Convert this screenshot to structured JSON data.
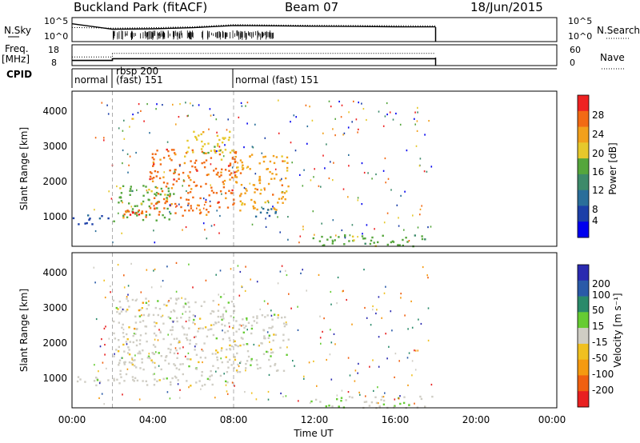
{
  "header": {
    "station": "Buckland Park (fitACF)",
    "beam": "Beam 07",
    "date": "18/Jun/2015"
  },
  "noise_panel": {
    "left_label": "N.Sky",
    "right_label": "N.Search",
    "left_ticks": [
      "10^5",
      "10^0"
    ],
    "right_ticks": [
      "10^5",
      "10^0"
    ]
  },
  "freq_panel": {
    "left_label_1": "Freq.",
    "left_label_2": "[MHz]",
    "right_label": "Nave",
    "left_ticks": [
      "18",
      "8"
    ],
    "right_ticks": [
      "60",
      "0"
    ]
  },
  "cpid_panel": {
    "label": "CPID",
    "segments": [
      {
        "text": "normal",
        "start_hour": 0,
        "end_hour": 2.0
      },
      {
        "text": "rbsp 200",
        "start_hour": 2.0,
        "end_hour": 8.0
      },
      {
        "text": "(fast) 151",
        "start_hour": 2.0,
        "end_hour": 8.0
      },
      {
        "text": "normal (fast) 151",
        "start_hour": 8.0,
        "end_hour": 18.0
      }
    ]
  },
  "power_panel": {
    "ylabel": "Slant Range [km]",
    "yticks": [
      "1000",
      "2000",
      "3000",
      "4000"
    ],
    "colorbar_label": "Power [dB]",
    "colorbar_ticks": [
      "4",
      "8",
      "12",
      "16",
      "20",
      "24",
      "28"
    ],
    "colors": [
      "#0000ee",
      "#1c3fa8",
      "#2a6e9a",
      "#3d8a6a",
      "#55a63c",
      "#e6c82c",
      "#f2a01c",
      "#f26a14",
      "#ee2222"
    ]
  },
  "velocity_panel": {
    "ylabel": "Slant Range [km]",
    "yticks": [
      "1000",
      "2000",
      "3000",
      "4000"
    ],
    "colorbar_label": "Velocity [m s⁻¹]",
    "colorbar_ticks": [
      "200",
      "100",
      "50",
      "15",
      "-15",
      "-50",
      "-100",
      "-200"
    ],
    "colors": [
      "#2a2ab0",
      "#2a5aa8",
      "#2a8a6a",
      "#66cc33",
      "#cfcdc4",
      "#f0c020",
      "#f59a10",
      "#f06010",
      "#e82020"
    ]
  },
  "x_axis": {
    "label": "Time UT",
    "ticks": [
      "00:00",
      "04:00",
      "08:00",
      "12:00",
      "16:00",
      "20:00",
      "00:00"
    ]
  },
  "chart_data": [
    {
      "type": "line",
      "title": "Buckland Park (fitACF) Beam 07 18/Jun/2015",
      "series": [
        {
          "name": "N.Sky",
          "x": [
            0,
            2,
            4,
            6,
            8,
            10,
            12,
            14,
            16,
            18
          ],
          "values": [
            8000,
            400,
            500,
            900,
            3000,
            2500,
            2000,
            1800,
            1500,
            1400
          ]
        },
        {
          "name": "N.Search",
          "x": [
            0,
            2,
            4,
            6,
            8,
            10,
            12,
            14,
            16,
            18
          ],
          "values": [
            1000,
            700,
            900,
            1500,
            5000,
            4000,
            3500,
            3000,
            2800,
            2500
          ]
        }
      ],
      "ylabel": "N.Sky / N.Search",
      "ylim": [
        1,
        100000
      ],
      "xlim": [
        0,
        24
      ],
      "log_y": true
    },
    {
      "type": "line",
      "series": [
        {
          "name": "Freq.",
          "x": [
            0,
            2,
            2,
            18
          ],
          "values": [
            10,
            10,
            11,
            11
          ]
        },
        {
          "name": "Nave",
          "x": [
            0,
            2,
            2,
            18
          ],
          "values": [
            24,
            24,
            36,
            36
          ]
        }
      ],
      "ylim": [
        8,
        18
      ],
      "xlim": [
        0,
        24
      ]
    },
    {
      "type": "heatmap",
      "quantity": "Power [dB]",
      "xlabel": "Time UT",
      "ylabel": "Slant Range [km]",
      "xlim": [
        0,
        24
      ],
      "ylim": [
        180,
        4500
      ],
      "clim": [
        0,
        30
      ],
      "regions": [
        {
          "t0": 0.0,
          "t1": 1.8,
          "r0": 820,
          "r1": 1100,
          "level": 4
        },
        {
          "t0": 2.0,
          "t1": 5.0,
          "r0": 900,
          "r1": 1900,
          "level": 16
        },
        {
          "t0": 2.5,
          "t1": 7.0,
          "r0": 1000,
          "r1": 1300,
          "level": 28
        },
        {
          "t0": 3.8,
          "t1": 8.2,
          "r0": 1200,
          "r1": 2900,
          "level": 26
        },
        {
          "t0": 5.5,
          "t1": 8.0,
          "r0": 2600,
          "r1": 3400,
          "level": 18
        },
        {
          "t0": 8.0,
          "t1": 10.7,
          "r0": 1200,
          "r1": 2800,
          "level": 22
        },
        {
          "t0": 9.0,
          "t1": 10.3,
          "r0": 1000,
          "r1": 1300,
          "level": 8
        },
        {
          "t0": 11.8,
          "t1": 18.0,
          "r0": 200,
          "r1": 520,
          "level": 14
        }
      ]
    },
    {
      "type": "heatmap",
      "quantity": "Velocity [m s⁻¹]",
      "xlabel": "Time UT",
      "ylabel": "Slant Range [km]",
      "xlim": [
        0,
        24
      ],
      "ylim": [
        180,
        4500
      ],
      "clim": [
        -200,
        200
      ],
      "regions": [
        {
          "t0": 0.0,
          "t1": 1.8,
          "r0": 820,
          "r1": 1100,
          "level": 0
        },
        {
          "t0": 2.0,
          "t1": 8.0,
          "r0": 820,
          "r1": 1150,
          "level": 0
        },
        {
          "t0": 2.0,
          "t1": 8.0,
          "r0": 1200,
          "r1": 3300,
          "level": 10
        },
        {
          "t0": 8.0,
          "t1": 10.7,
          "r0": 1200,
          "r1": 2800,
          "level": 0
        },
        {
          "t0": 11.8,
          "t1": 13.5,
          "r0": 200,
          "r1": 480,
          "level": -40
        },
        {
          "t0": 13.5,
          "t1": 18.0,
          "r0": 200,
          "r1": 520,
          "level": -20
        }
      ]
    }
  ]
}
